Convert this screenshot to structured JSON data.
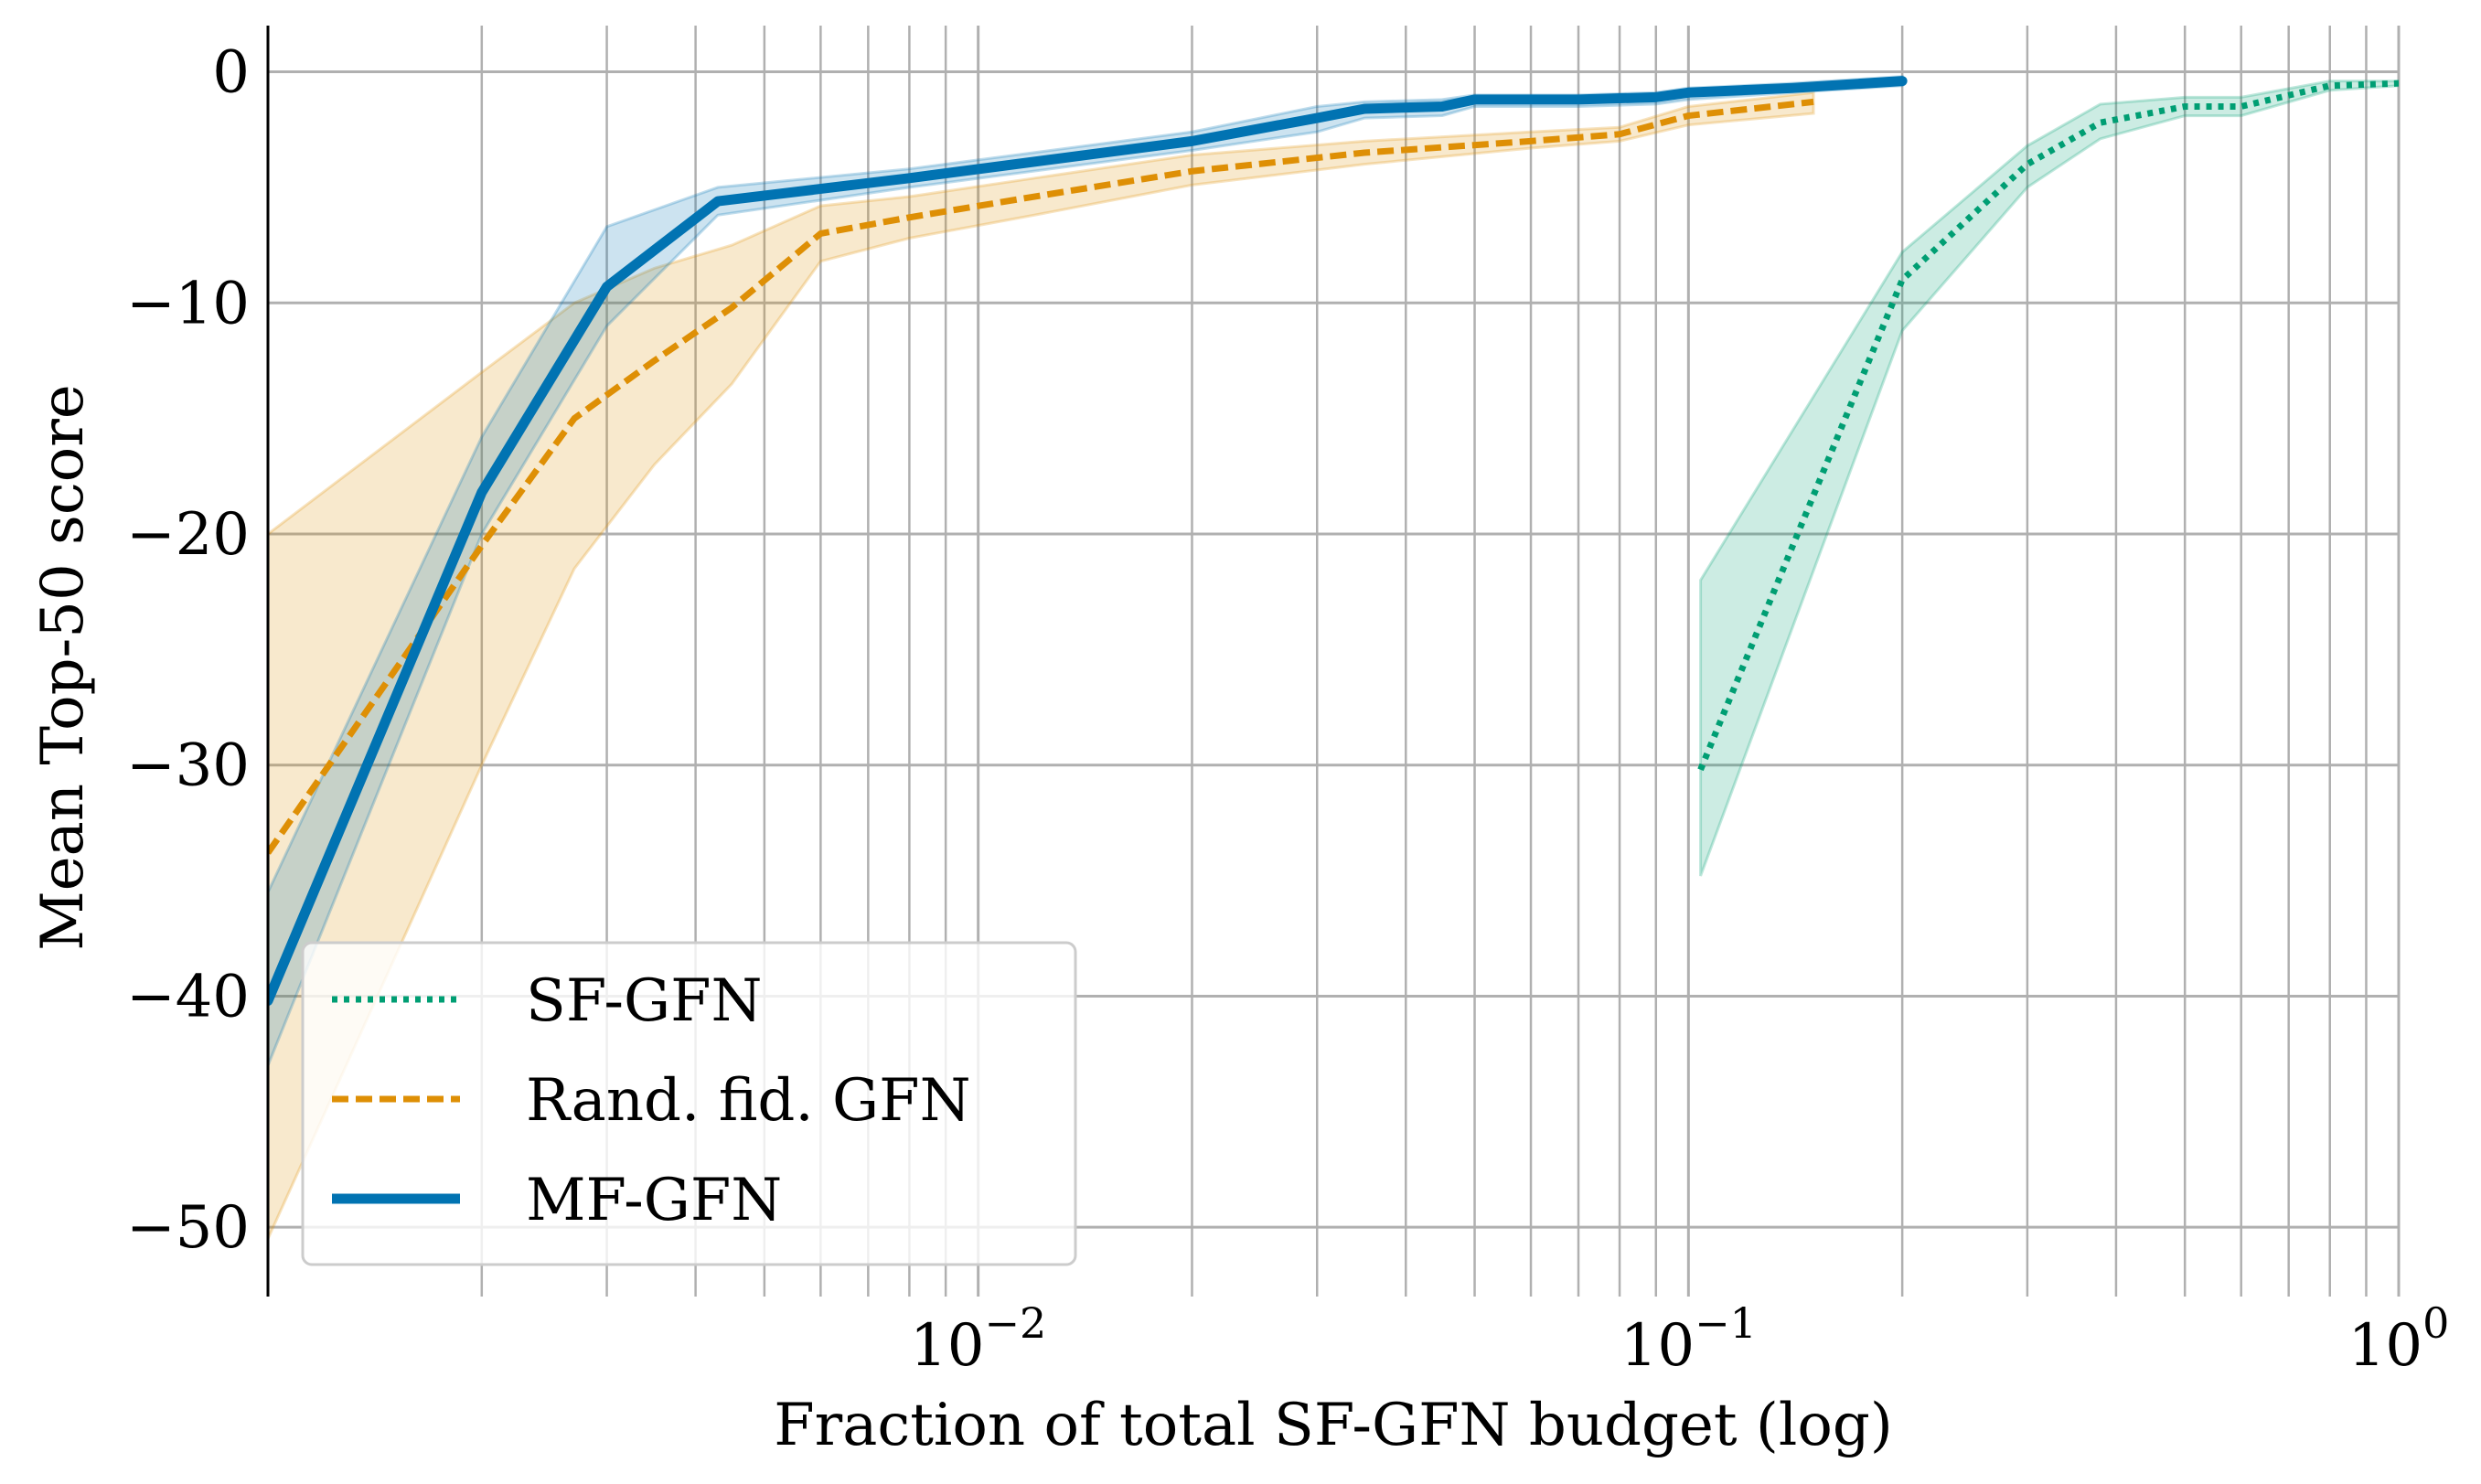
{
  "chart_data": {
    "type": "line",
    "title": "",
    "xlabel": "Fraction of total SF-GFN budget (log)",
    "ylabel": "Mean Top-50 score",
    "xscale": "log",
    "xlim": [
      0.001,
      1.0
    ],
    "ylim": [
      -53,
      2
    ],
    "grid": true,
    "legend_position": "lower-left",
    "x_tick_labels": [
      {
        "value": 0.01,
        "base": "10",
        "exp": "−2"
      },
      {
        "value": 0.1,
        "base": "10",
        "exp": "−1"
      },
      {
        "value": 1.0,
        "base": "10",
        "exp": "0"
      }
    ],
    "y_ticks": [
      {
        "value": 0,
        "label": "0"
      },
      {
        "value": -10,
        "label": "−10"
      },
      {
        "value": -20,
        "label": "−20"
      },
      {
        "value": -30,
        "label": "−30"
      },
      {
        "value": -40,
        "label": "−40"
      },
      {
        "value": -50,
        "label": "−50"
      }
    ],
    "series": [
      {
        "name": "SF-GFN",
        "color": "#009e73",
        "style": "dotted",
        "x": [
          0.104,
          0.2,
          0.3,
          0.38,
          0.5,
          0.6,
          0.8,
          1.0
        ],
        "y": [
          -30.2,
          -9.0,
          -4.0,
          -2.2,
          -1.5,
          -1.5,
          -0.6,
          -0.5
        ],
        "lower": [
          -34.8,
          -11.2,
          -5.0,
          -2.9,
          -1.9,
          -1.9,
          -0.8,
          -0.6
        ],
        "upper": [
          -22.0,
          -7.8,
          -3.2,
          -1.4,
          -1.1,
          -1.1,
          -0.4,
          -0.4
        ]
      },
      {
        "name": "Rand. fid. GFN",
        "color": "#de8f05",
        "style": "dashed",
        "x": [
          0.001,
          0.002,
          0.0027,
          0.0035,
          0.0045,
          0.006,
          0.008,
          0.012,
          0.02,
          0.035,
          0.06,
          0.08,
          0.1,
          0.15
        ],
        "y": [
          -33.8,
          -20.5,
          -15.0,
          -12.5,
          -10.2,
          -7.0,
          -6.3,
          -5.4,
          -4.3,
          -3.5,
          -3.0,
          -2.7,
          -1.9,
          -1.3
        ],
        "lower": [
          -50.5,
          -30.0,
          -21.5,
          -17.0,
          -13.5,
          -8.2,
          -7.2,
          -6.2,
          -4.9,
          -4.0,
          -3.3,
          -3.0,
          -2.3,
          -1.8
        ],
        "upper": [
          -20.0,
          -13.0,
          -10.0,
          -8.5,
          -7.5,
          -5.8,
          -5.4,
          -4.6,
          -3.6,
          -3.0,
          -2.6,
          -2.4,
          -1.5,
          -0.9
        ]
      },
      {
        "name": "MF-GFN",
        "color": "#0173b2",
        "style": "solid",
        "x": [
          0.001,
          0.002,
          0.003,
          0.0043,
          0.008,
          0.02,
          0.03,
          0.035,
          0.045,
          0.05,
          0.07,
          0.09,
          0.1,
          0.14,
          0.2
        ],
        "y": [
          -40.2,
          -18.2,
          -9.3,
          -5.6,
          -4.6,
          -3.0,
          -2.0,
          -1.6,
          -1.5,
          -1.2,
          -1.2,
          -1.1,
          -0.9,
          -0.7,
          -0.4
        ],
        "lower": [
          -43.0,
          -20.0,
          -11.0,
          -6.2,
          -5.0,
          -3.4,
          -2.6,
          -2.0,
          -1.9,
          -1.5,
          -1.5,
          -1.4,
          -1.2,
          -0.9,
          -0.6
        ],
        "upper": [
          -35.5,
          -15.8,
          -6.7,
          -5.0,
          -4.2,
          -2.6,
          -1.5,
          -1.3,
          -1.2,
          -1.0,
          -1.0,
          -0.9,
          -0.7,
          -0.5,
          -0.2
        ]
      }
    ]
  }
}
